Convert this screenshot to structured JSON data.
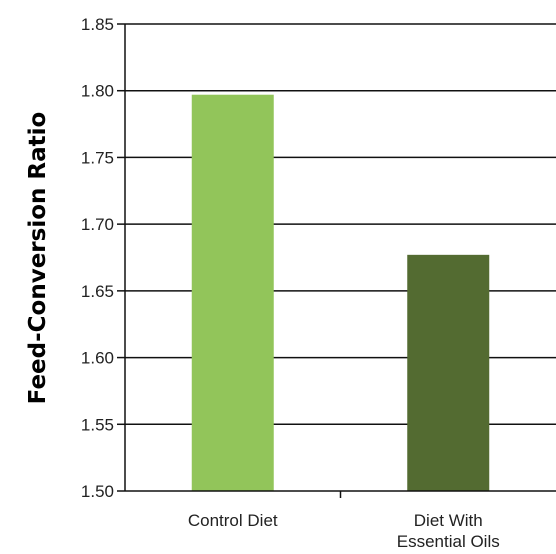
{
  "chart_data": {
    "type": "bar",
    "title": "",
    "xlabel": "",
    "ylabel": "Feed-Conversion Ratio",
    "categories": [
      [
        "Control Diet"
      ],
      [
        "Diet With",
        "Essential Oils"
      ]
    ],
    "values": [
      1.797,
      1.677
    ],
    "ylim": [
      1.5,
      1.85
    ],
    "yticks": [
      "1.50",
      "1.55",
      "1.60",
      "1.65",
      "1.70",
      "1.75",
      "1.80",
      "1.85"
    ],
    "grid": true,
    "colors": [
      "#92c55a",
      "#536b31"
    ],
    "gridline_color": "#111111"
  }
}
